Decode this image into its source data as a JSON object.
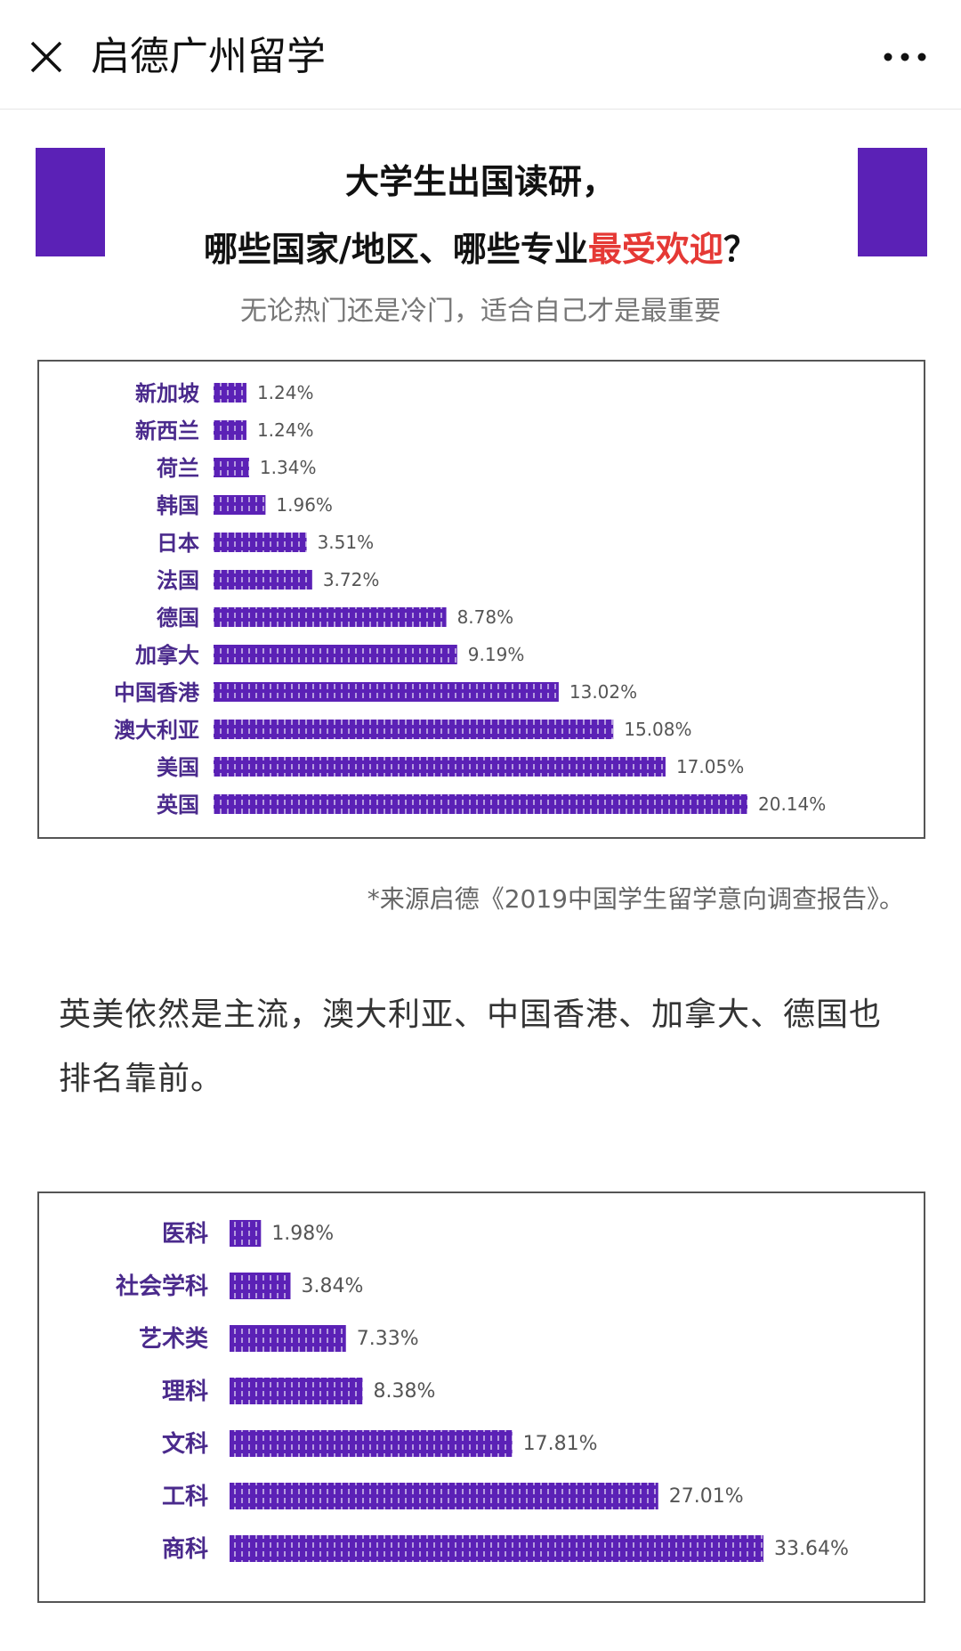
{
  "nav": {
    "title": "启德广州留学"
  },
  "headline": {
    "line1": "大学生出国读研，",
    "line2_prefix": "哪些国家/地区、哪些专业",
    "line2_accent": "最受欢迎",
    "line2_suffix": "？",
    "subtitle": "无论热门还是冷门，适合自己才是最重要"
  },
  "colors": {
    "bar": "#5b21b6",
    "accent": "#e53935",
    "label": "#4a2a8c"
  },
  "chart_data": [
    {
      "type": "bar",
      "orientation": "horizontal",
      "categories": [
        "新加坡",
        "新西兰",
        "荷兰",
        "韩国",
        "日本",
        "法国",
        "德国",
        "加拿大",
        "中国香港",
        "澳大利亚",
        "美国",
        "英国"
      ],
      "values": [
        1.24,
        1.24,
        1.34,
        1.96,
        3.51,
        3.72,
        8.78,
        9.19,
        13.02,
        15.08,
        17.05,
        20.14
      ],
      "value_labels": [
        "1.24%",
        "1.24%",
        "1.34%",
        "1.96%",
        "3.51%",
        "3.72%",
        "8.78%",
        "9.19%",
        "13.02%",
        "15.08%",
        "17.05%",
        "20.14%"
      ],
      "unit": "%",
      "title": "",
      "xlabel": "",
      "ylabel": "",
      "xlim": [
        0,
        20.14
      ],
      "grid": false,
      "legend": "none"
    },
    {
      "type": "bar",
      "orientation": "horizontal",
      "categories": [
        "医科",
        "社会学科",
        "艺术类",
        "理科",
        "文科",
        "工科",
        "商科"
      ],
      "values": [
        1.98,
        3.84,
        7.33,
        8.38,
        17.81,
        27.01,
        33.64
      ],
      "value_labels": [
        "1.98%",
        "3.84%",
        "7.33%",
        "8.38%",
        "17.81%",
        "27.01%",
        "33.64%"
      ],
      "unit": "%",
      "title": "",
      "xlabel": "",
      "ylabel": "",
      "xlim": [
        0,
        33.64
      ],
      "grid": false,
      "legend": "none"
    }
  ],
  "source1": "*来源启德《2019中国学生留学意向调查报告》。",
  "body_text": "英美依然是主流，澳大利亚、中国香港、加拿大、德国也排名靠前。"
}
